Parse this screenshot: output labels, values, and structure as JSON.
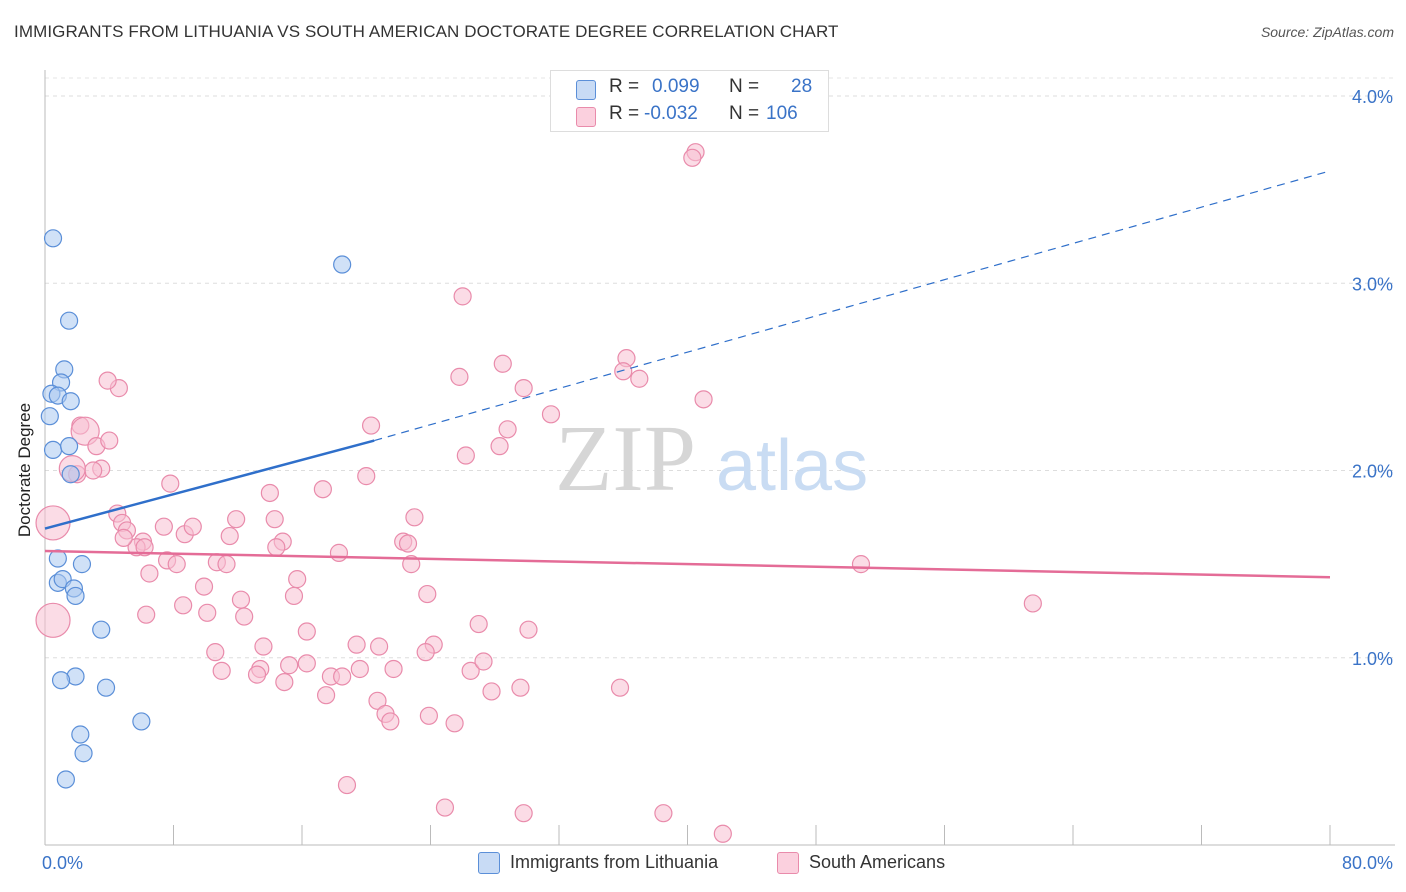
{
  "header": {
    "title": "IMMIGRANTS FROM LITHUANIA VS SOUTH AMERICAN DOCTORATE DEGREE CORRELATION CHART",
    "source": "Source: ZipAtlas.com"
  },
  "legend_top": {
    "rows": [
      {
        "r_label": "R =",
        "r_value": "0.099",
        "n_label": "N =",
        "n_value": "28"
      },
      {
        "r_label": "R =",
        "r_value": "-0.032",
        "n_label": "N =",
        "n_value": "106"
      }
    ]
  },
  "legend_bottom": {
    "items": [
      {
        "label": "Immigrants from Lithuania"
      },
      {
        "label": "South Americans"
      }
    ]
  },
  "watermark": {
    "zip": "ZIP",
    "atlas": "atlas"
  },
  "colors": {
    "blue_fill": "#aac8f0",
    "blue_stroke": "#5b8fd8",
    "blue_line": "#2f6fca",
    "pink_fill": "#f8c0d2",
    "pink_stroke": "#e98bab",
    "pink_line": "#e46c97",
    "tick_text": "#3a73c7",
    "grid": "#dddddd"
  },
  "chart_data": {
    "type": "scatter",
    "title": "IMMIGRANTS FROM LITHUANIA VS SOUTH AMERICAN DOCTORATE DEGREE CORRELATION CHART",
    "xlabel": "",
    "ylabel": "Doctorate Degree",
    "xlim": [
      0,
      80
    ],
    "ylim": [
      0,
      4.2
    ],
    "x_tick_labels": [
      "0.0%",
      "80.0%"
    ],
    "y_ticks": [
      1.0,
      2.0,
      3.0,
      4.0
    ],
    "y_tick_labels": [
      "1.0%",
      "2.0%",
      "3.0%",
      "4.0%"
    ],
    "grid": true,
    "series": [
      {
        "name": "Immigrants from Lithuania",
        "color": "blue",
        "points": [
          [
            0.5,
            3.24
          ],
          [
            1.5,
            2.8
          ],
          [
            1.2,
            2.54
          ],
          [
            1.0,
            2.47
          ],
          [
            0.4,
            2.41
          ],
          [
            0.8,
            2.4
          ],
          [
            1.6,
            2.37
          ],
          [
            0.3,
            2.29
          ],
          [
            0.5,
            2.11
          ],
          [
            1.5,
            2.13
          ],
          [
            1.6,
            1.98
          ],
          [
            0.8,
            1.53
          ],
          [
            2.3,
            1.5
          ],
          [
            0.8,
            1.4
          ],
          [
            1.1,
            1.42
          ],
          [
            1.8,
            1.37
          ],
          [
            1.9,
            1.33
          ],
          [
            3.5,
            1.15
          ],
          [
            1.9,
            0.9
          ],
          [
            1.0,
            0.88
          ],
          [
            3.8,
            0.84
          ],
          [
            6.0,
            0.66
          ],
          [
            2.2,
            0.59
          ],
          [
            2.4,
            0.49
          ],
          [
            1.3,
            0.35
          ],
          [
            18.5,
            3.1
          ]
        ],
        "trend": {
          "x": [
            0,
            20.5
          ],
          "y": [
            1.69,
            2.16
          ],
          "dashed_extension": {
            "x": [
              20.5,
              80
            ],
            "y": [
              2.16,
              3.6
            ]
          }
        }
      },
      {
        "name": "South Americans",
        "color": "pink",
        "points": [
          [
            40.5,
            3.7
          ],
          [
            40.3,
            3.67
          ],
          [
            26.0,
            2.93
          ],
          [
            28.5,
            2.57
          ],
          [
            36.2,
            2.6
          ],
          [
            25.8,
            2.5
          ],
          [
            36.0,
            2.53
          ],
          [
            37.0,
            2.49
          ],
          [
            29.8,
            2.44
          ],
          [
            41.0,
            2.38
          ],
          [
            31.5,
            2.3
          ],
          [
            28.8,
            2.22
          ],
          [
            28.3,
            2.13
          ],
          [
            26.2,
            2.08
          ],
          [
            20.3,
            2.24
          ],
          [
            4.6,
            2.44
          ],
          [
            3.9,
            2.48
          ],
          [
            2.2,
            2.24
          ],
          [
            2.5,
            2.21
          ],
          [
            3.2,
            2.13
          ],
          [
            4.0,
            2.16
          ],
          [
            3.5,
            2.01
          ],
          [
            3.0,
            2.0
          ],
          [
            2.0,
            1.98
          ],
          [
            1.7,
            2.01
          ],
          [
            20.0,
            1.97
          ],
          [
            7.8,
            1.93
          ],
          [
            17.3,
            1.9
          ],
          [
            14.0,
            1.88
          ],
          [
            0.5,
            1.72
          ],
          [
            4.5,
            1.77
          ],
          [
            4.8,
            1.72
          ],
          [
            5.1,
            1.68
          ],
          [
            7.4,
            1.7
          ],
          [
            8.7,
            1.66
          ],
          [
            9.2,
            1.7
          ],
          [
            11.9,
            1.74
          ],
          [
            11.5,
            1.65
          ],
          [
            14.3,
            1.74
          ],
          [
            14.8,
            1.62
          ],
          [
            6.1,
            1.62
          ],
          [
            5.7,
            1.59
          ],
          [
            6.2,
            1.59
          ],
          [
            7.6,
            1.52
          ],
          [
            8.2,
            1.5
          ],
          [
            10.7,
            1.51
          ],
          [
            11.3,
            1.5
          ],
          [
            18.3,
            1.56
          ],
          [
            22.3,
            1.62
          ],
          [
            22.6,
            1.61
          ],
          [
            23.0,
            1.75
          ],
          [
            22.8,
            1.5
          ],
          [
            6.5,
            1.45
          ],
          [
            9.9,
            1.38
          ],
          [
            12.2,
            1.31
          ],
          [
            12.4,
            1.22
          ],
          [
            15.7,
            1.42
          ],
          [
            15.5,
            1.33
          ],
          [
            8.6,
            1.28
          ],
          [
            6.3,
            1.23
          ],
          [
            10.1,
            1.24
          ],
          [
            23.8,
            1.34
          ],
          [
            30.1,
            1.15
          ],
          [
            27.0,
            1.18
          ],
          [
            24.2,
            1.07
          ],
          [
            19.4,
            1.07
          ],
          [
            20.8,
            1.06
          ],
          [
            23.7,
            1.03
          ],
          [
            16.3,
            1.14
          ],
          [
            13.6,
            1.06
          ],
          [
            10.6,
            1.03
          ],
          [
            11.0,
            0.93
          ],
          [
            13.4,
            0.94
          ],
          [
            13.2,
            0.91
          ],
          [
            15.2,
            0.96
          ],
          [
            16.3,
            0.97
          ],
          [
            17.8,
            0.9
          ],
          [
            18.5,
            0.9
          ],
          [
            19.6,
            0.94
          ],
          [
            21.7,
            0.94
          ],
          [
            26.5,
            0.93
          ],
          [
            27.3,
            0.98
          ],
          [
            14.9,
            0.87
          ],
          [
            17.5,
            0.8
          ],
          [
            27.8,
            0.82
          ],
          [
            29.6,
            0.84
          ],
          [
            35.8,
            0.84
          ],
          [
            20.7,
            0.77
          ],
          [
            21.2,
            0.7
          ],
          [
            21.5,
            0.66
          ],
          [
            23.9,
            0.69
          ],
          [
            25.5,
            0.65
          ],
          [
            50.8,
            1.5
          ],
          [
            61.5,
            1.29
          ],
          [
            18.8,
            0.32
          ],
          [
            24.9,
            0.2
          ],
          [
            29.8,
            0.17
          ],
          [
            38.5,
            0.17
          ],
          [
            42.2,
            0.06
          ],
          [
            0.5,
            1.2
          ],
          [
            4.9,
            1.64
          ],
          [
            14.4,
            1.59
          ]
        ],
        "trend": {
          "x": [
            0,
            80
          ],
          "y": [
            1.57,
            1.43
          ]
        }
      }
    ]
  }
}
